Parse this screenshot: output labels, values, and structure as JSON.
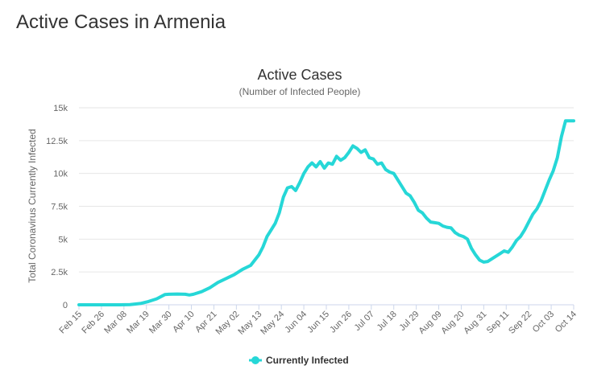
{
  "page": {
    "title": "Active Cases in Armenia"
  },
  "colors": {
    "series": "#26d7d7",
    "grid": "#e6e6e6",
    "text": "#333333",
    "axis_text": "#666666",
    "axis_line": "#ccd6eb"
  },
  "chart_data": {
    "type": "line",
    "title": "Active Cases",
    "subtitle": "(Number of Infected People)",
    "xlabel": "",
    "ylabel": "Total Coronavirus Currently Infected",
    "ylim": [
      0,
      15000
    ],
    "yticks": [
      0,
      2500,
      5000,
      7500,
      10000,
      12500,
      15000
    ],
    "ytick_labels": [
      "0",
      "2.5k",
      "5k",
      "7.5k",
      "10k",
      "12.5k",
      "15k"
    ],
    "xtick_labels": [
      "Feb 15",
      "Feb 26",
      "Mar 08",
      "Mar 19",
      "Mar 30",
      "Apr 10",
      "Apr 21",
      "May 02",
      "May 13",
      "May 24",
      "Jun 04",
      "Jun 15",
      "Jun 26",
      "Jul 07",
      "Jul 18",
      "Jul 29",
      "Aug 09",
      "Aug 20",
      "Aug 31",
      "Sep 11",
      "Sep 22",
      "Oct 03",
      "Oct 14"
    ],
    "grid": true,
    "legend_position": "bottom-center",
    "series": [
      {
        "name": "Currently Infected",
        "color": "#26d7d7",
        "x_days": [
          0,
          11,
          20,
          25,
          30,
          34,
          38,
          42,
          44,
          48,
          52,
          54,
          56,
          60,
          64,
          68,
          72,
          76,
          80,
          84,
          88,
          90,
          92,
          94,
          96,
          98,
          100,
          102,
          104,
          106,
          108,
          110,
          112,
          114,
          116,
          118,
          120,
          122,
          124,
          126,
          128,
          130,
          132,
          134,
          136,
          138,
          140,
          142,
          144,
          146,
          148,
          150,
          152,
          154,
          156,
          158,
          160,
          162,
          164,
          166,
          168,
          170,
          172,
          174,
          176,
          178,
          180,
          182,
          184,
          186,
          188,
          190,
          192,
          194,
          196,
          198,
          200,
          202,
          204,
          206,
          208,
          210,
          212,
          214,
          216,
          218,
          220,
          222,
          224,
          226,
          228,
          230,
          232,
          234,
          236,
          238,
          240,
          242
        ],
        "values": [
          0,
          0,
          0,
          20,
          100,
          250,
          450,
          780,
          800,
          820,
          800,
          750,
          800,
          1000,
          1300,
          1700,
          2000,
          2300,
          2700,
          3000,
          3800,
          4400,
          5200,
          5700,
          6200,
          7000,
          8200,
          8900,
          9000,
          8700,
          9300,
          10000,
          10500,
          10800,
          10500,
          10900,
          10400,
          10800,
          10700,
          11300,
          11000,
          11200,
          11600,
          12100,
          11900,
          11600,
          11800,
          11200,
          11100,
          10700,
          10800,
          10300,
          10100,
          10000,
          9500,
          9000,
          8500,
          8300,
          7800,
          7200,
          7000,
          6600,
          6300,
          6250,
          6200,
          6000,
          5900,
          5850,
          5500,
          5300,
          5200,
          5000,
          4300,
          3800,
          3400,
          3250,
          3300,
          3500,
          3700,
          3900,
          4100,
          4000,
          4400,
          4900,
          5200,
          5700,
          6300,
          6900,
          7300,
          7900,
          8700,
          9500,
          10200,
          11200,
          12800,
          14000,
          14000,
          14000
        ]
      }
    ]
  }
}
